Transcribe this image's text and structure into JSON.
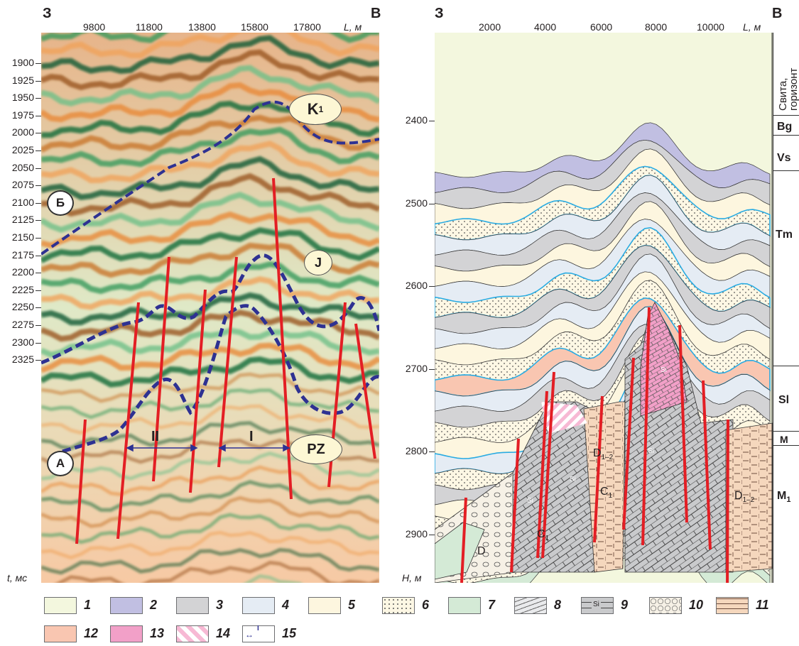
{
  "left_panel": {
    "west_label": "З",
    "east_label": "В",
    "x_ticks": [
      "9800",
      "11800",
      "13800",
      "15800",
      "17800"
    ],
    "x_axis_label": "L, м",
    "y_ticks": [
      "1900",
      "1925",
      "1950",
      "1975",
      "2000",
      "2025",
      "2050",
      "2075",
      "2100",
      "2125",
      "2150",
      "2175",
      "2200",
      "2225",
      "2250",
      "2275",
      "2300",
      "2325"
    ],
    "y_axis_label": "t, мс",
    "horizon_labels": {
      "K1": "K",
      "K1_sub": "1",
      "J": "J",
      "PZ": "PZ",
      "A": "А",
      "B": "Б"
    },
    "zone_labels": {
      "I": "I",
      "II": "II"
    }
  },
  "right_panel": {
    "west_label": "З",
    "east_label": "В",
    "x_ticks": [
      "2000",
      "4000",
      "6000",
      "8000",
      "10000"
    ],
    "x_axis_label": "L, м",
    "y_ticks": [
      "2400",
      "2500",
      "2600",
      "2700",
      "2800",
      "2900"
    ],
    "y_axis_label": "H, м",
    "strat_header": "Свита, горизонт",
    "formations": [
      "Bg",
      "Vs",
      "Tm",
      "Sl",
      "M",
      "M"
    ],
    "formation_sub": "1",
    "rock_labels": {
      "Si": "Si",
      "D12": "D",
      "D12_sub": "1–2",
      "C1": "C",
      "C1_sub": "1",
      "D": "D"
    }
  },
  "legend": [
    {
      "num": "1",
      "color": "#f3f7de"
    },
    {
      "num": "2",
      "color": "#c1bfe2"
    },
    {
      "num": "3",
      "color": "#d3d3d5"
    },
    {
      "num": "4",
      "color": "#e5ecf4"
    },
    {
      "num": "5",
      "color": "#fdf6df"
    },
    {
      "num": "6",
      "color": "#fdf7e4"
    },
    {
      "num": "7",
      "color": "#d4ead6"
    },
    {
      "num": "8",
      "color": "#e9eaec"
    },
    {
      "num": "9",
      "color": "#c9cacc"
    },
    {
      "num": "10",
      "color": "#f6f1e6"
    },
    {
      "num": "11",
      "color": "#f5d7bd"
    },
    {
      "num": "12",
      "color": "#f9c6b1"
    },
    {
      "num": "13",
      "color": "#f2a0c8"
    },
    {
      "num": "14",
      "color": "#f7b9d4"
    },
    {
      "num": "15",
      "color": "#ffffff"
    }
  ],
  "legend_glyphs": {
    "si": "Si",
    "arrow_tag": "I"
  }
}
